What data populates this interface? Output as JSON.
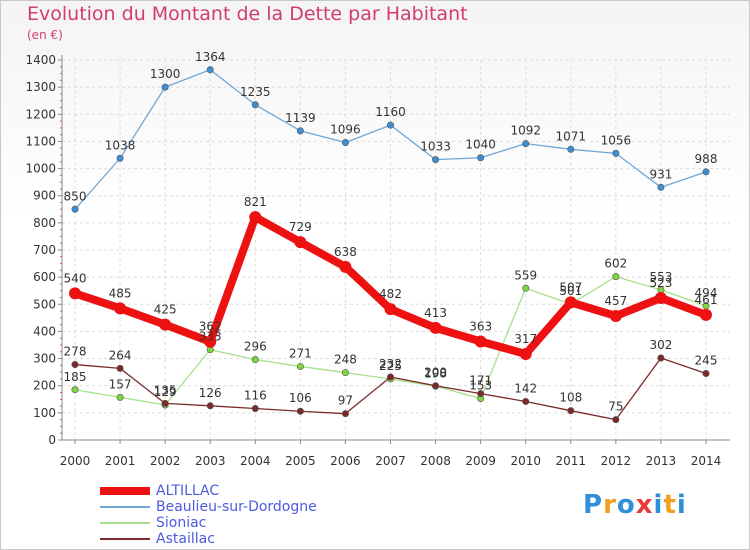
{
  "title": "Evolution du Montant de la Dette par Habitant",
  "subtitle": "(en €)",
  "logo": {
    "text": "Proxiti",
    "letters": [
      "P",
      "r",
      "o",
      "x",
      "i",
      "t",
      "i"
    ],
    "colors": [
      "#2f8fd8",
      "#f0a020",
      "#2f8fd8",
      "#e83a3a",
      "#2f8fd8",
      "#f0a020",
      "#2f8fd8"
    ]
  },
  "chart_data": {
    "type": "line",
    "x": [
      "2000",
      "2001",
      "2002",
      "2003",
      "2004",
      "2005",
      "2006",
      "2007",
      "2008",
      "2009",
      "2010",
      "2011",
      "2012",
      "2013",
      "2014"
    ],
    "yticks": [
      "0",
      "100",
      "200",
      "300",
      "400",
      "500",
      "600",
      "700",
      "800",
      "900",
      "1000",
      "1100",
      "1200",
      "1300",
      "1400"
    ],
    "ylim": [
      0,
      1400
    ],
    "grid": true,
    "legend_position": "bottom-left",
    "series": [
      {
        "name": "Beaulieu-sur-Dordogne",
        "color": "#6fa7d8",
        "marker": "#3f8fd0",
        "width": 1.3,
        "values": [
          850,
          1038,
          1300,
          1364,
          1235,
          1139,
          1096,
          1160,
          1033,
          1040,
          1092,
          1071,
          1056,
          931,
          988
        ],
        "labels": [
          "850",
          "1038",
          "1300",
          "1364",
          "1235",
          "1139",
          "1096",
          "1160",
          "1033",
          "1040",
          "1092",
          "1071",
          "1056",
          "931",
          "988"
        ]
      },
      {
        "name": "Sioniac",
        "color": "#a8e08a",
        "marker": "#7cd63c",
        "width": 1.3,
        "values": [
          185,
          157,
          129,
          333,
          296,
          271,
          248,
          225,
          198,
          153,
          559,
          501,
          602,
          553,
          494
        ],
        "labels": [
          "185",
          "157",
          "129",
          "333",
          "296",
          "271",
          "248",
          "225",
          "198",
          "153",
          "559",
          "501",
          "602",
          "553",
          "494"
        ]
      },
      {
        "name": "Astaillac",
        "color": "#7a2a2a",
        "marker": "#7a2a2a",
        "width": 1.3,
        "values": [
          278,
          264,
          135,
          126,
          116,
          106,
          97,
          232,
          200,
          171,
          142,
          108,
          75,
          302,
          245
        ],
        "labels": [
          "278",
          "264",
          "135",
          "126",
          "116",
          "106",
          "97",
          "232",
          "200",
          "171",
          "142",
          "108",
          "75",
          "302",
          "245"
        ]
      },
      {
        "name": "ALTILLAC",
        "color": "#ee1111",
        "marker": "#ee1111",
        "width": 8,
        "values": [
          540,
          485,
          425,
          362,
          821,
          729,
          638,
          482,
          413,
          363,
          317,
          507,
          457,
          523,
          461
        ],
        "labels": [
          "540",
          "485",
          "425",
          "362",
          "821",
          "729",
          "638",
          "482",
          "413",
          "363",
          "317",
          "507",
          "457",
          "523",
          "461"
        ]
      }
    ],
    "legend": [
      {
        "name": "ALTILLAC",
        "color": "#ee1111",
        "width": 8
      },
      {
        "name": "Beaulieu-sur-Dordogne",
        "color": "#6fa7d8",
        "width": 1.3
      },
      {
        "name": "Sioniac",
        "color": "#a8e08a",
        "width": 1.3
      },
      {
        "name": "Astaillac",
        "color": "#7a2a2a",
        "width": 1.3
      }
    ]
  }
}
